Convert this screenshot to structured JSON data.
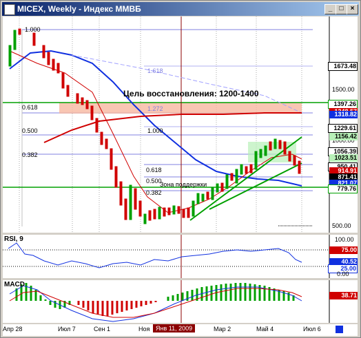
{
  "window": {
    "title": "MICEX, Weekly - Индекс ММВБ"
  },
  "main": {
    "annotation": "Цель восстановления: 1200-1400",
    "support_zone": "Зона поддержки",
    "fib_left": [
      "1.000",
      "0.618",
      "0.500",
      "0.382"
    ],
    "fib_mid": [
      "1.618",
      "1.272",
      "1.000"
    ],
    "fib_low": [
      "0.618",
      "0.500",
      "0.382"
    ],
    "price_axis": [
      "1500.00",
      "1000.00",
      "500.00"
    ],
    "price_labels": [
      "1673.48",
      "1397.26",
      "1348.57",
      "1318.82",
      "1229.61",
      "1156.42",
      "1056.39",
      "1023.51",
      "950.41",
      "914.91",
      "871.41",
      "821.07",
      "779.76"
    ]
  },
  "rsi": {
    "title": "RSI, 9",
    "axis": [
      "100.00",
      "75.00",
      "40.52",
      "25.00",
      "0.00"
    ]
  },
  "macd": {
    "title": "MACD",
    "value": "38.71"
  },
  "time_axis": {
    "labels": [
      "Апр 28",
      "Июл 7",
      "Сен 1",
      "Ноя",
      "Мар 2",
      "Май 4",
      "Июл 6"
    ],
    "cursor_label": "Янв 11, 2009"
  },
  "colors": {
    "accent": "#0a246a",
    "grid": "#c0c0ff",
    "down": "#d00000",
    "up": "#00a000",
    "ma_blue": "#1030e0",
    "ma_red": "#d00000",
    "line_green": "#00a000"
  }
}
